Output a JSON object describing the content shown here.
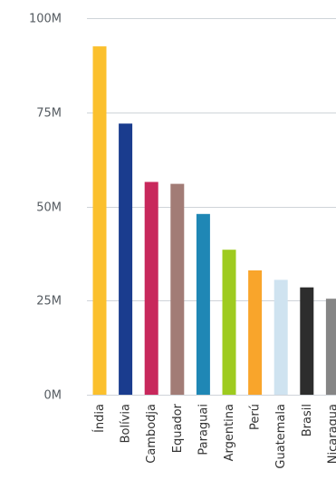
{
  "chart_data": {
    "type": "bar",
    "title": "",
    "xlabel": "",
    "ylabel": "",
    "ylim": [
      0,
      100000000
    ],
    "yticks": [
      {
        "value": 0,
        "label": "0M"
      },
      {
        "value": 25000000,
        "label": "25M"
      },
      {
        "value": 50000000,
        "label": "50M"
      },
      {
        "value": 75000000,
        "label": "75M"
      },
      {
        "value": 100000000,
        "label": "100M"
      }
    ],
    "grid": true,
    "legend": "none",
    "categories": [
      "Índia",
      "Bolívia",
      "Cambodja",
      "Equador",
      "Paraguai",
      "Argentina",
      "Perú",
      "Guatemala",
      "Brasil",
      "Nicaragua"
    ],
    "values": [
      92500000,
      72000000,
      56500000,
      56000000,
      48000000,
      38500000,
      33000000,
      30500000,
      28500000,
      25500000
    ],
    "colors": [
      "#fbc02d",
      "#1a3c8e",
      "#c8285c",
      "#a27c76",
      "#1f87b5",
      "#9ecb1f",
      "#f9a52b",
      "#cfe3f0",
      "#2d2d2d",
      "#858585"
    ]
  }
}
